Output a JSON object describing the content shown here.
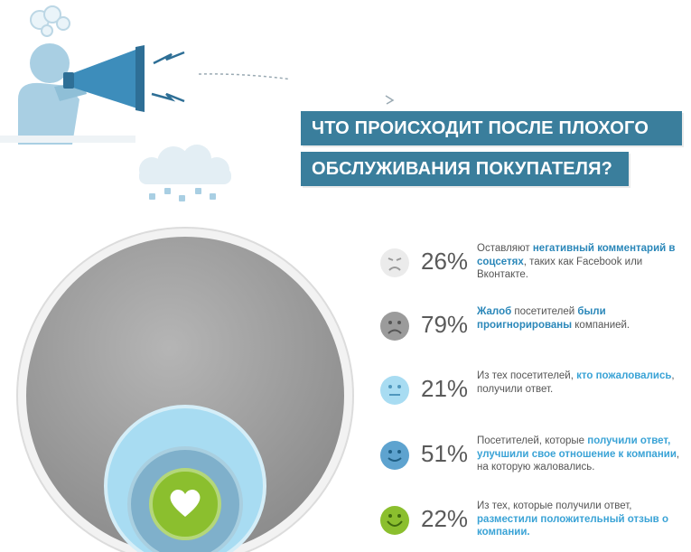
{
  "title": {
    "line1": "ЧТО ПРОИСХОДИТ ПОСЛЕ ПЛОХОГО",
    "line2": "ОБСЛУЖИВАНИЯ ПОКУПАТЕЛЯ?"
  },
  "colors": {
    "accent": "#3a7e9c",
    "highlight": "#3aa3d6",
    "circle_outer": "#9e9e9e",
    "circle_light_blue": "#a8dcf2",
    "circle_mid_blue": "#7fb0cb",
    "circle_green": "#8bbf2e"
  },
  "stats": [
    {
      "icon": "angry-face-icon",
      "percent": "26%",
      "text_parts": [
        {
          "t": "Оставляют ",
          "h": false
        },
        {
          "t": "негативный комментарий в соцсетях",
          "h": true
        },
        {
          "t": ", таких как Facebook или Вконтакте.",
          "h": false
        }
      ]
    },
    {
      "icon": "sad-face-icon",
      "percent": "79%",
      "text_parts": [
        {
          "t": "Жалоб",
          "h": true
        },
        {
          "t": " посетителей ",
          "h": false
        },
        {
          "t": "были проигнорированы",
          "h": true
        },
        {
          "t": " компанией.",
          "h": false
        }
      ]
    },
    {
      "icon": "neutral-face-icon",
      "percent": "21%",
      "text_parts": [
        {
          "t": "Из тех посетителей, ",
          "h": false
        },
        {
          "t": "кто пожаловались",
          "h": true
        },
        {
          "t": ", получили ответ.",
          "h": false
        }
      ]
    },
    {
      "icon": "slight-smile-face-icon",
      "percent": "51%",
      "text_parts": [
        {
          "t": "Посетителей, которые ",
          "h": false
        },
        {
          "t": "получили ответ, улучшили свое отношение к компании",
          "h": true
        },
        {
          "t": ", на которую жаловались.",
          "h": false
        }
      ]
    },
    {
      "icon": "happy-face-icon",
      "percent": "22%",
      "text_parts": [
        {
          "t": "Из тех, которые получили ответ, ",
          "h": false
        },
        {
          "t": "разместили положительный отзыв о компании.",
          "h": true
        }
      ]
    }
  ]
}
